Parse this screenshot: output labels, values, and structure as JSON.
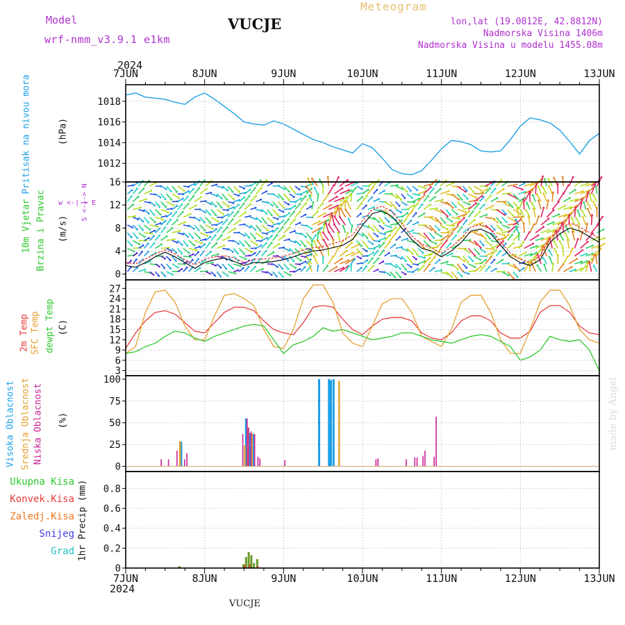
{
  "header": {
    "model_label": "Model",
    "model_name": "wrf-nmm_v3.9.1 e1km",
    "station": "VUCJE",
    "meteogram": "Meteogram",
    "coords": "lon,lat (19.0812E, 42.8812N)",
    "elevation": "Nadmorska Visina 1406m",
    "model_elevation": "Nadmorska Visina u modelu 1455.08m",
    "year_top": "2024",
    "year_bottom": "2024",
    "footer_station": "VUCJE",
    "credit": "made by Angel"
  },
  "colors": {
    "pressure": "#1ea0e6",
    "temp2m": "#e83c3c",
    "sfc": "#e6a030",
    "dewpt": "#2ec82e",
    "cloud_high": "#1ea0e6",
    "cloud_mid": "#e6a030",
    "cloud_low": "#c81e96",
    "wind_label": "#28c828",
    "compass": "#b030d0",
    "precip_total": "#2ec82e",
    "precip_conv": "#e83c3c",
    "precip_frozen": "#f07820",
    "snow": "#4040e0",
    "hail": "#20c0c0"
  },
  "panel_labels": {
    "pressure": [
      "Pritisak na nivou mora",
      "(hPa)"
    ],
    "wind": [
      "10m Vjetar",
      "Brzina i Pravac",
      "(m/s)"
    ],
    "compass": "w <-|-> E",
    "compass_ns": "S <-|-> N",
    "temp": [
      "2m Temp",
      "SFC Temp",
      "dewpt Temp",
      "(C)"
    ],
    "cloud": [
      "Visoka Oblacnost",
      "Srednja Oblacnost",
      "Niska Oblacnost",
      "(%)"
    ],
    "precip": [
      "Ukupna Kisa",
      "Konvek.Kisa",
      "Zaledj.Kisa",
      "Snijeg",
      "Grad",
      "1hr Precip (mm)"
    ]
  },
  "chart_data": [
    {
      "type": "line",
      "panel": "pressure",
      "ylabel": "(hPa)",
      "ylim": [
        1010.2,
        1019.6
      ],
      "yticks": [
        "1012",
        "1014",
        "1016",
        "1018"
      ],
      "xticks": [
        "7JUN",
        "8JUN",
        "9JUN",
        "10JUN",
        "11JUN",
        "12JUN",
        "13JUN"
      ],
      "x_hours": [
        0,
        3,
        6,
        9,
        12,
        15,
        18,
        21,
        24,
        27,
        30,
        33,
        36,
        39,
        42,
        45,
        48,
        51,
        54,
        57,
        60,
        63,
        66,
        69,
        72,
        75,
        78,
        81,
        84,
        87,
        90,
        93,
        96,
        99,
        102,
        105,
        108,
        111,
        114,
        117,
        120,
        123,
        126,
        129,
        132,
        135,
        138,
        141,
        144
      ],
      "series": [
        {
          "name": "Pritisak na nivou mora",
          "values": [
            1018.6,
            1018.8,
            1018.4,
            1018.3,
            1018.2,
            1017.9,
            1017.7,
            1018.4,
            1018.8,
            1018.2,
            1017.5,
            1016.8,
            1016.0,
            1015.8,
            1015.7,
            1016.1,
            1015.8,
            1015.3,
            1014.8,
            1014.3,
            1014.0,
            1013.6,
            1013.3,
            1013.0,
            1013.9,
            1013.5,
            1012.5,
            1011.4,
            1011.0,
            1010.9,
            1011.3,
            1012.3,
            1013.4,
            1014.2,
            1014.1,
            1013.8,
            1013.2,
            1013.1,
            1013.2,
            1014.3,
            1015.6,
            1016.4,
            1016.2,
            1015.9,
            1015.2,
            1014.1,
            1012.9,
            1014.2,
            1014.9
          ]
        }
      ]
    },
    {
      "type": "line",
      "panel": "wind",
      "ylabel": "(m/s)",
      "ylim": [
        -1,
        16
      ],
      "yticks": [
        "0",
        "4",
        "8",
        "12",
        "16"
      ],
      "x_hours": [
        0,
        3,
        6,
        9,
        12,
        15,
        18,
        21,
        24,
        27,
        30,
        33,
        36,
        39,
        42,
        45,
        48,
        51,
        54,
        57,
        60,
        63,
        66,
        69,
        72,
        75,
        78,
        81,
        84,
        87,
        90,
        93,
        96,
        99,
        102,
        105,
        108,
        111,
        114,
        117,
        120,
        123,
        126,
        129,
        132,
        135,
        138,
        141,
        144
      ],
      "series": [
        {
          "name": "wind speed",
          "values": [
            1.5,
            1.2,
            2.0,
            3.0,
            3.8,
            3.0,
            2.0,
            1.0,
            2.0,
            2.5,
            2.8,
            2.2,
            1.5,
            2.0,
            2.0,
            2.2,
            2.5,
            3.0,
            3.6,
            4.0,
            4.2,
            4.6,
            5.0,
            6.0,
            8.5,
            10.5,
            11.0,
            10.0,
            8.0,
            6.0,
            4.5,
            4.0,
            3.0,
            4.0,
            5.5,
            7.5,
            7.8,
            7.0,
            5.0,
            3.0,
            2.0,
            1.5,
            2.5,
            5.5,
            7.0,
            8.0,
            7.5,
            6.5,
            5.5
          ]
        },
        {
          "name": "wind gust",
          "values": [
            2.0,
            1.8,
            2.6,
            3.5,
            4.2,
            3.5,
            2.5,
            1.6,
            2.6,
            3.0,
            3.2,
            2.8,
            2.0,
            2.6,
            2.6,
            2.8,
            3.1,
            3.6,
            4.2,
            4.6,
            4.8,
            5.3,
            5.8,
            6.8,
            9.3,
            11.2,
            11.8,
            10.8,
            8.8,
            6.6,
            5.2,
            4.6,
            3.6,
            4.7,
            6.2,
            8.2,
            8.6,
            7.8,
            5.6,
            3.6,
            2.6,
            2.0,
            3.2,
            6.2,
            7.8,
            8.9,
            8.2,
            7.2,
            6.2
          ]
        }
      ]
    },
    {
      "type": "line",
      "panel": "temperature",
      "ylabel": "(C)",
      "ylim": [
        1.5,
        29.5
      ],
      "yticks": [
        "3",
        "6",
        "9",
        "12",
        "15",
        "18",
        "21",
        "24",
        "27"
      ],
      "x_hours": [
        0,
        3,
        6,
        9,
        12,
        15,
        18,
        21,
        24,
        27,
        30,
        33,
        36,
        39,
        42,
        45,
        48,
        51,
        54,
        57,
        60,
        63,
        66,
        69,
        72,
        75,
        78,
        81,
        84,
        87,
        90,
        93,
        96,
        99,
        102,
        105,
        108,
        111,
        114,
        117,
        120,
        123,
        126,
        129,
        132,
        135,
        138,
        141,
        144
      ],
      "series": [
        {
          "name": "2m Temp",
          "values": [
            9.5,
            14.0,
            17.5,
            20.0,
            20.5,
            19.5,
            17.0,
            14.5,
            14.0,
            17.0,
            20.0,
            21.5,
            21.5,
            20.5,
            17.5,
            15.0,
            14.0,
            13.5,
            17.0,
            21.5,
            22.0,
            21.5,
            18.0,
            15.0,
            13.5,
            16.0,
            18.0,
            18.5,
            18.5,
            17.5,
            14.0,
            12.5,
            12.0,
            14.0,
            17.5,
            19.0,
            19.0,
            17.5,
            14.0,
            12.5,
            12.5,
            14.5,
            20.0,
            22.0,
            22.0,
            20.0,
            16.0,
            14.0,
            13.5
          ]
        },
        {
          "name": "SFC Temp",
          "values": [
            8.0,
            10.0,
            20.0,
            26.0,
            26.5,
            23.0,
            16.0,
            12.0,
            12.0,
            19.0,
            25.0,
            25.5,
            24.0,
            22.0,
            15.0,
            10.0,
            9.5,
            15.0,
            24.0,
            28.0,
            28.0,
            23.0,
            14.0,
            11.0,
            10.0,
            16.0,
            22.5,
            24.0,
            24.0,
            20.0,
            13.0,
            11.5,
            10.0,
            15.0,
            23.0,
            25.0,
            25.0,
            20.0,
            12.0,
            8.0,
            8.0,
            15.0,
            23.0,
            26.5,
            26.5,
            22.0,
            15.0,
            12.0,
            11.0
          ]
        },
        {
          "name": "dewpt Temp",
          "values": [
            8.0,
            8.5,
            10.0,
            11.0,
            13.0,
            14.5,
            14.0,
            12.5,
            11.5,
            13.0,
            14.0,
            15.0,
            16.0,
            16.5,
            16.0,
            12.0,
            8.0,
            10.5,
            11.5,
            13.0,
            15.5,
            14.5,
            15.0,
            14.0,
            13.0,
            12.0,
            12.5,
            13.0,
            14.0,
            14.0,
            13.0,
            12.0,
            11.5,
            11.0,
            12.0,
            13.0,
            13.5,
            13.0,
            11.5,
            10.0,
            6.0,
            7.0,
            9.0,
            13.0,
            12.0,
            11.5,
            12.0,
            9.0,
            3.0
          ]
        }
      ]
    },
    {
      "type": "bar",
      "panel": "clouds",
      "ylabel": "(%)",
      "ylim": [
        -6,
        104
      ],
      "yticks": [
        "0",
        "25",
        "50",
        "75",
        "100"
      ],
      "series": [
        {
          "name": "Visoka Oblacnost",
          "bars": [
            [
              16.9,
              28
            ],
            [
              36.6,
              55
            ],
            [
              37.7,
              38
            ],
            [
              38.8,
              37
            ],
            [
              58.8,
              100
            ],
            [
              61.8,
              100
            ],
            [
              62.4,
              99
            ],
            [
              63.2,
              100
            ]
          ]
        },
        {
          "name": "Srednja Oblacnost",
          "bars": [
            [
              16.5,
              29
            ],
            [
              36.2,
              24
            ],
            [
              37.2,
              45
            ],
            [
              38.4,
              38
            ],
            [
              64.9,
              98
            ]
          ]
        },
        {
          "name": "Niska Oblacnost",
          "bars": [
            [
              10.8,
              8
            ],
            [
              13.0,
              8
            ],
            [
              15.6,
              18
            ],
            [
              17.9,
              8
            ],
            [
              18.6,
              15
            ],
            [
              35.6,
              37
            ],
            [
              36.9,
              55
            ],
            [
              37.4,
              44
            ],
            [
              38.1,
              40
            ],
            [
              39.2,
              37
            ],
            [
              40.2,
              11
            ],
            [
              40.8,
              9
            ],
            [
              48.4,
              7
            ],
            [
              76.1,
              8
            ],
            [
              76.7,
              9
            ],
            [
              85.3,
              8
            ],
            [
              87.9,
              10
            ],
            [
              88.6,
              10
            ],
            [
              90.4,
              12
            ],
            [
              91.0,
              18
            ],
            [
              93.8,
              11
            ],
            [
              94.4,
              57
            ]
          ]
        }
      ]
    },
    {
      "type": "bar",
      "panel": "precipitation",
      "ylabel": "1hr Precip (mm)",
      "ylim": [
        0,
        0.97
      ],
      "yticks": [
        "0",
        "0.2",
        "0.4",
        "0.6",
        "0.8"
      ],
      "series": [
        {
          "name": "Ukupna Kisa",
          "bars": [
            [
              16.3,
              0.02
            ],
            [
              35.8,
              0.04
            ],
            [
              36.6,
              0.11
            ],
            [
              37.4,
              0.16
            ],
            [
              38.2,
              0.13
            ],
            [
              39.0,
              0.05
            ],
            [
              40.0,
              0.09
            ]
          ]
        },
        {
          "name": "Konvek.Kisa",
          "bars": [
            [
              16.5,
              0.01
            ],
            [
              36.2,
              0.03
            ],
            [
              37.7,
              0.04
            ],
            [
              40.2,
              0.02
            ]
          ]
        },
        {
          "name": "Zaledj.Kisa",
          "bars": []
        },
        {
          "name": "Snijeg",
          "bars": []
        },
        {
          "name": "Grad",
          "bars": []
        }
      ]
    }
  ]
}
